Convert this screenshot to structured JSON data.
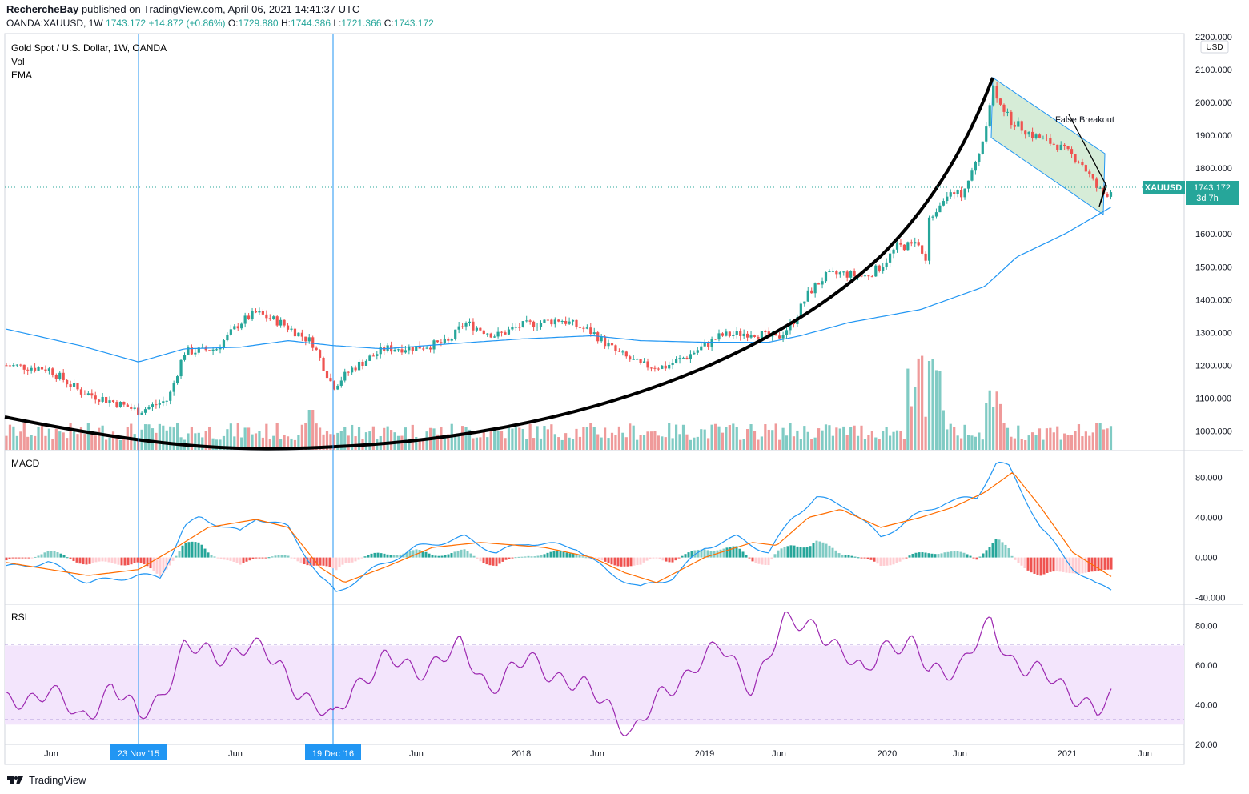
{
  "header": {
    "author": "RechercheBay",
    "published_text": "published on TradingView.com, April 06, 2021 14:41:37 UTC",
    "symbol_line_prefix": "OANDA:XAUUSD, 1W",
    "last": "1743.172",
    "change": "+14.872 (+0.86%)",
    "o_label": "O:",
    "o_val": "1729.880",
    "h_label": "H:",
    "h_val": "1744.386",
    "l_label": "L:",
    "l_val": "1721.366",
    "c_label": "C:",
    "c_val": "1743.172"
  },
  "legend": {
    "title": "Gold Spot / U.S. Dollar, 1W, OANDA",
    "vol": "Vol",
    "ema": "EMA"
  },
  "price_axis": {
    "currency": "USD",
    "ticks": [
      "2200.000",
      "2100.000",
      "2000.000",
      "1900.000",
      "1800.000",
      "1600.000",
      "1500.000",
      "1400.000",
      "1300.000",
      "1200.000",
      "1100.000",
      "1000.000"
    ],
    "symbol_tag": "XAUUSD",
    "price_tag": "1743.172",
    "countdown": "3d 7h"
  },
  "macd_pane": {
    "label": "MACD",
    "ticks": [
      "80.000",
      "40.000",
      "0.000",
      "-40.000"
    ]
  },
  "rsi_pane": {
    "label": "RSI",
    "ticks": [
      "80.00",
      "60.00",
      "40.00",
      "20.00"
    ]
  },
  "annotations": {
    "false_breakout": "False Breakout"
  },
  "time_axis": {
    "labels": [
      "Jun",
      "Jun",
      "Jun",
      "2018",
      "Jun",
      "2019",
      "Jun",
      "2020",
      "Jun",
      "2021",
      "Jun"
    ],
    "marker_1": "23 Nov '15",
    "marker_2": "19 Dec '16"
  },
  "footer": {
    "brand": "TradingView"
  },
  "colors": {
    "up": "#26a69a",
    "down": "#ef5350",
    "ema": "#2196f3",
    "macd": "#2196f3",
    "signal": "#ff6d00",
    "rsi": "#9c27b0",
    "rsi_band": "#f3e5fc",
    "channel": "#c8e6c9",
    "tag_bg": "#26a69a"
  },
  "chart_data": {
    "type": "candlestick",
    "series": [
      {
        "name": "Gold Spot / U.S. Dollar, 1W, OANDA",
        "x": [
          "2015-01",
          "2015-06",
          "2015-11",
          "2016-06",
          "2016-08",
          "2016-12",
          "2017-06",
          "2017-09",
          "2017-12",
          "2018-04",
          "2018-08",
          "2018-12",
          "2019-06",
          "2019-09",
          "2020-03",
          "2020-08",
          "2021-03"
        ],
        "values": [
          1200,
          1185,
          1050,
          1320,
          1365,
          1130,
          1260,
          1345,
          1255,
          1350,
          1175,
          1280,
          1390,
          1530,
          1480,
          2065,
          1685
        ]
      },
      {
        "name": "EMA",
        "x": [
          "2015-01",
          "2015-11",
          "2016-08",
          "2016-12",
          "2018-04",
          "2018-08",
          "2019-06",
          "2020-03",
          "2020-08",
          "2021-03"
        ],
        "values": [
          1310,
          1210,
          1260,
          1270,
          1290,
          1275,
          1270,
          1350,
          1500,
          1685
        ]
      }
    ],
    "ylim": [
      940,
      2210
    ],
    "macd": {
      "ylim": [
        -45,
        105
      ]
    },
    "rsi": {
      "ylim": [
        20,
        90
      ],
      "band": [
        30,
        70
      ]
    }
  }
}
